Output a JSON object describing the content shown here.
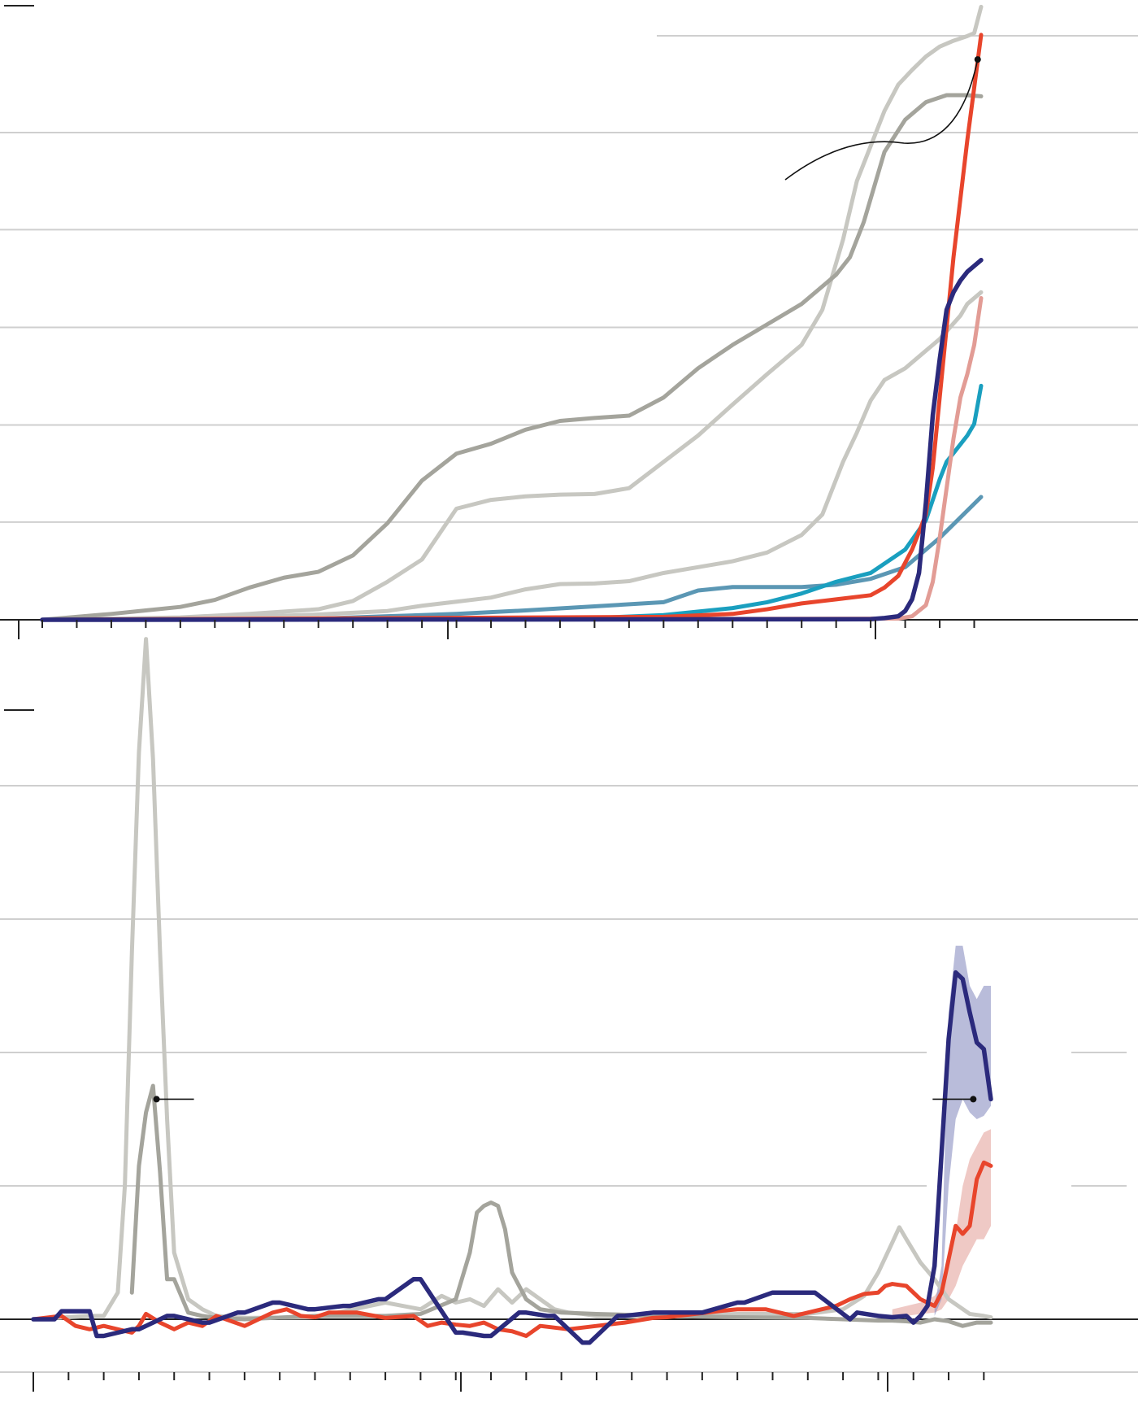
{
  "colors": {
    "red": "#e8452c",
    "red_light": "#e29c95",
    "navy": "#2b2a7c",
    "teal": "#1a9fbf",
    "steel": "#5b97b4",
    "gray_dark": "#a4a49c",
    "gray_light": "#c7c7c1",
    "grid": "#cfcfcf",
    "axis": "#222222"
  },
  "chart_data": [
    {
      "type": "line",
      "title": "",
      "xlabel": "",
      "ylabel": "",
      "grid": true,
      "legend": "none",
      "xlim": [
        0,
        136
      ],
      "ylim": [
        0,
        100
      ],
      "yticks": [
        0,
        16.7,
        33.3,
        50,
        66.7,
        83.3
      ],
      "major_ticks": [
        -3,
        57,
        117
      ],
      "minor_ticks": [
        0,
        5,
        10,
        15,
        20,
        25,
        30,
        35,
        40,
        45,
        50,
        55,
        60,
        65,
        70,
        75,
        80,
        85,
        90,
        95,
        100,
        105,
        110,
        115,
        120,
        125,
        130,
        135
      ],
      "series": [
        {
          "color": "gray_light",
          "width": 5,
          "x": [
            0,
            20,
            30,
            40,
            45,
            50,
            55,
            60,
            65,
            70,
            75,
            80,
            85,
            90,
            95,
            100,
            105,
            110,
            113,
            116,
            118,
            120,
            122,
            124,
            126,
            128,
            130,
            132,
            134,
            135,
            136
          ],
          "y": [
            0,
            0.4,
            1.0,
            1.8,
            3.2,
            6.5,
            10.3,
            19.0,
            20.5,
            21.1,
            21.4,
            21.5,
            22.5,
            27.0,
            31.5,
            36.8,
            42.0,
            47.0,
            53.0,
            65.0,
            75.0,
            81.0,
            87.0,
            91.5,
            94.0,
            96.3,
            98.0,
            99.0,
            99.8,
            100.3,
            104.8
          ]
        },
        {
          "color": "gray_dark",
          "width": 5,
          "x": [
            0,
            10,
            15,
            20,
            25,
            30,
            35,
            40,
            45,
            50,
            55,
            60,
            65,
            70,
            75,
            80,
            85,
            90,
            95,
            100,
            105,
            110,
            115,
            117,
            119,
            122,
            125,
            128,
            131,
            134,
            136
          ],
          "y": [
            0,
            1.0,
            1.6,
            2.2,
            3.4,
            5.5,
            7.2,
            8.2,
            11.0,
            16.5,
            23.8,
            28.4,
            30.1,
            32.5,
            34.0,
            34.5,
            34.9,
            38.0,
            43.0,
            47.0,
            50.5,
            54.0,
            59.0,
            62.0,
            68.0,
            80.0,
            85.5,
            88.5,
            89.7,
            89.7,
            89.5
          ]
        },
        {
          "color": "gray_light",
          "width": 5,
          "x": [
            0,
            20,
            30,
            40,
            50,
            55,
            60,
            65,
            70,
            75,
            80,
            85,
            90,
            95,
            100,
            105,
            110,
            113,
            116,
            118,
            120,
            122,
            125,
            128,
            130,
            133,
            134,
            136
          ],
          "y": [
            0,
            0.2,
            0.5,
            0.9,
            1.5,
            2.4,
            3.1,
            3.8,
            5.2,
            6.1,
            6.2,
            6.6,
            8.0,
            9.0,
            10.0,
            11.5,
            14.5,
            18.0,
            27.0,
            32.0,
            37.5,
            41.0,
            43.0,
            46.0,
            48.0,
            52.0,
            54.0,
            56.0
          ]
        },
        {
          "color": "steel",
          "width": 5,
          "x": [
            0,
            40,
            50,
            60,
            70,
            80,
            90,
            95,
            100,
            110,
            115,
            120,
            125,
            130,
            136
          ],
          "y": [
            0,
            0.2,
            0.6,
            1.0,
            1.6,
            2.3,
            3.0,
            5.0,
            5.6,
            5.6,
            6.0,
            7.0,
            9.0,
            14.0,
            21.0
          ]
        },
        {
          "color": "teal",
          "width": 5,
          "x": [
            0,
            80,
            90,
            100,
            105,
            110,
            115,
            120,
            125,
            128,
            130,
            131,
            132,
            133,
            134,
            135,
            136
          ],
          "y": [
            0,
            0.3,
            0.8,
            2.0,
            3.0,
            4.5,
            6.5,
            8.0,
            12.0,
            17.0,
            24.0,
            27.0,
            28.5,
            30.0,
            31.5,
            33.5,
            40.0
          ]
        },
        {
          "color": "red_light",
          "width": 5,
          "x": [
            0,
            124,
            126,
            128,
            129,
            130,
            131,
            132,
            133,
            134,
            135,
            136
          ],
          "y": [
            0,
            0.2,
            0.6,
            2.5,
            6.5,
            14.0,
            22.5,
            31.0,
            38.0,
            42.0,
            47.0,
            55.0
          ]
        },
        {
          "color": "red",
          "width": 5,
          "x": [
            0,
            90,
            100,
            105,
            110,
            115,
            120,
            122,
            124,
            126,
            128,
            129,
            130,
            131,
            132,
            133,
            134,
            135,
            136
          ],
          "y": [
            0,
            0.5,
            1.0,
            1.8,
            2.8,
            3.5,
            4.2,
            5.5,
            7.5,
            12.0,
            18.0,
            26.0,
            38.0,
            50.0,
            62.0,
            72.0,
            82.0,
            91.0,
            100.0
          ]
        },
        {
          "color": "navy",
          "width": 5.5,
          "x": [
            0,
            120,
            122,
            124,
            125,
            126,
            127,
            128,
            129,
            130,
            131,
            132,
            133,
            134,
            135,
            136
          ],
          "y": [
            0,
            0.1,
            0.3,
            0.6,
            1.5,
            3.5,
            8.0,
            20.0,
            35.0,
            44.5,
            53.0,
            56.0,
            58.0,
            59.5,
            60.5,
            61.5
          ]
        }
      ],
      "annotations": [
        {
          "at_x": 135.5,
          "at_y": 95.8
        }
      ]
    },
    {
      "type": "line",
      "title": "",
      "xlabel": "",
      "ylabel": "",
      "grid": true,
      "legend": "none",
      "xlim": [
        0,
        136
      ],
      "ylim": [
        -5,
        115
      ],
      "yticks": [
        0,
        20,
        40,
        60,
        80
      ],
      "major_ticks": [
        0,
        60,
        120
      ],
      "minor_ticks": [
        0,
        5,
        10,
        15,
        20,
        25,
        30,
        35,
        40,
        45,
        50,
        55,
        60,
        65,
        70,
        75,
        80,
        85,
        90,
        95,
        100,
        105,
        110,
        115,
        120,
        125,
        130,
        135
      ],
      "series": [
        {
          "color": "gray_light",
          "width": 5,
          "x": [
            0,
            8,
            10,
            12,
            13,
            14,
            15,
            16,
            17,
            18,
            19,
            20,
            22,
            24,
            26,
            30,
            40,
            50,
            55,
            58,
            60,
            62,
            64,
            66,
            68,
            70,
            72,
            74,
            76,
            78,
            80,
            90,
            100,
            110,
            115,
            118,
            120,
            122,
            123,
            124,
            126,
            128,
            130,
            133,
            135,
            136
          ],
          "y": [
            0,
            0.5,
            0.5,
            4.0,
            20.0,
            55.0,
            85.0,
            102.0,
            84.0,
            55.0,
            30.0,
            10.0,
            3.0,
            1.5,
            0.5,
            0.2,
            0.3,
            2.5,
            1.5,
            3.5,
            2.5,
            3.0,
            2.0,
            4.5,
            2.5,
            4.5,
            3.0,
            1.5,
            1.0,
            0.8,
            0.5,
            0.5,
            0.8,
            0.8,
            1.5,
            3.5,
            7.0,
            11.5,
            13.8,
            12.0,
            8.5,
            6.0,
            3.0,
            0.8,
            0.5,
            0.3
          ]
        },
        {
          "color": "gray_dark",
          "width": 5,
          "x": [
            14,
            15,
            16,
            17,
            18,
            19,
            20,
            22,
            24,
            26,
            30,
            40,
            50,
            55,
            60,
            62,
            63,
            64,
            65,
            66,
            67,
            68,
            70,
            72,
            75,
            80,
            90,
            100,
            110,
            115,
            120,
            122,
            124,
            126,
            128,
            130,
            132,
            134,
            136
          ],
          "y": [
            4.0,
            23.0,
            31.0,
            35.0,
            22.0,
            6.0,
            6.0,
            1.0,
            0.5,
            0.2,
            0.0,
            0.5,
            0.5,
            0.8,
            3.0,
            10.0,
            16.0,
            17.0,
            17.5,
            17.0,
            13.5,
            7.0,
            3.0,
            1.5,
            1.0,
            0.8,
            0.5,
            0.3,
            0.2,
            0.0,
            -0.2,
            -0.2,
            -0.3,
            -0.5,
            0.0,
            -0.3,
            -1.0,
            -0.5,
            -0.5
          ]
        },
        {
          "color": "red_light",
          "band": true,
          "x": [
            122,
            124,
            126,
            128,
            129,
            130,
            131,
            132,
            133,
            134,
            135,
            136
          ],
          "y_low": [
            0.5,
            0.5,
            0.8,
            1.0,
            1.5,
            3.0,
            5.0,
            8.0,
            10.0,
            12.0,
            12.0,
            14.0
          ],
          "y_high": [
            1.5,
            2.0,
            2.5,
            3.5,
            5.0,
            9.0,
            13.0,
            20.0,
            24.0,
            26.0,
            28.0,
            28.5
          ]
        },
        {
          "color": "navy_light",
          "band": true,
          "x": [
            128,
            129,
            130,
            131,
            132,
            133,
            134,
            135,
            136
          ],
          "y_low": [
            0.5,
            3.0,
            20.0,
            30.0,
            33.0,
            31.0,
            30.0,
            30.5,
            32.0
          ],
          "y_high": [
            2.0,
            8.0,
            46.0,
            56.0,
            56.0,
            50.0,
            48.0,
            50.0,
            50.0
          ]
        },
        {
          "color": "red",
          "width": 5,
          "x": [
            0,
            4,
            6,
            8,
            10,
            12,
            14,
            15,
            16,
            18,
            20,
            22,
            24,
            26,
            30,
            34,
            36,
            38,
            40,
            42,
            46,
            50,
            54,
            56,
            58,
            60,
            62,
            64,
            66,
            68,
            70,
            72,
            76,
            80,
            84,
            88,
            90,
            94,
            98,
            100,
            104,
            108,
            112,
            114,
            116,
            118,
            120,
            121,
            122,
            124,
            126,
            128,
            129,
            130,
            131,
            132,
            133,
            134,
            135,
            136
          ],
          "y": [
            0,
            0.5,
            -1.0,
            -1.5,
            -1.0,
            -1.5,
            -2.0,
            -1.0,
            0.8,
            -0.5,
            -1.5,
            -0.5,
            -1.0,
            0.5,
            -1.0,
            1.0,
            1.5,
            0.5,
            0.3,
            1.0,
            1.0,
            0.2,
            0.5,
            -1.0,
            -0.5,
            -0.8,
            -1.0,
            -0.5,
            -1.5,
            -1.8,
            -2.5,
            -1.0,
            -1.5,
            -1.0,
            -0.5,
            0.2,
            0.3,
            0.8,
            1.3,
            1.5,
            1.5,
            0.5,
            1.5,
            2.0,
            3.0,
            3.8,
            4.0,
            5.0,
            5.3,
            5.0,
            3.0,
            2.0,
            4.0,
            9.0,
            14.0,
            12.8,
            14.0,
            21.0,
            23.5,
            23.0
          ]
        },
        {
          "color": "navy",
          "width": 5.5,
          "x": [
            0,
            3,
            4,
            8,
            9,
            10,
            14,
            15,
            19,
            20,
            24,
            25,
            29,
            30,
            34,
            35,
            39,
            40,
            44,
            45,
            49,
            50,
            54,
            55,
            60,
            61,
            64,
            65,
            69,
            70,
            73,
            74,
            78,
            79,
            83,
            84,
            88,
            89,
            94,
            95,
            100,
            101,
            105,
            106,
            110,
            111,
            116,
            117,
            120,
            122,
            124,
            125,
            126,
            127,
            128,
            129,
            130,
            131,
            132,
            133,
            134,
            135,
            136
          ],
          "y": [
            0,
            0,
            1.2,
            1.2,
            -2.5,
            -2.5,
            -1.5,
            -1.5,
            0.5,
            0.5,
            -0.5,
            -0.5,
            1.0,
            1.0,
            2.5,
            2.5,
            1.5,
            1.5,
            2.0,
            2.0,
            3.0,
            3.0,
            6.0,
            6.0,
            -2.0,
            -2.0,
            -2.5,
            -2.5,
            1.0,
            1.0,
            0.5,
            0.5,
            -3.5,
            -3.5,
            0.5,
            0.5,
            1.0,
            1.0,
            1.0,
            1.0,
            2.5,
            2.5,
            4.0,
            4.0,
            4.0,
            4.0,
            0.0,
            1.0,
            0.5,
            0.3,
            0.5,
            -0.5,
            0.5,
            2.0,
            8.0,
            25.0,
            42.0,
            52.0,
            51.0,
            46.0,
            41.5,
            40.5,
            33.0
          ]
        }
      ],
      "annotations": [
        {
          "at_x": 17.5,
          "at_y": 33.0
        },
        {
          "at_x": 133.5,
          "at_y": 33.0
        }
      ]
    }
  ]
}
